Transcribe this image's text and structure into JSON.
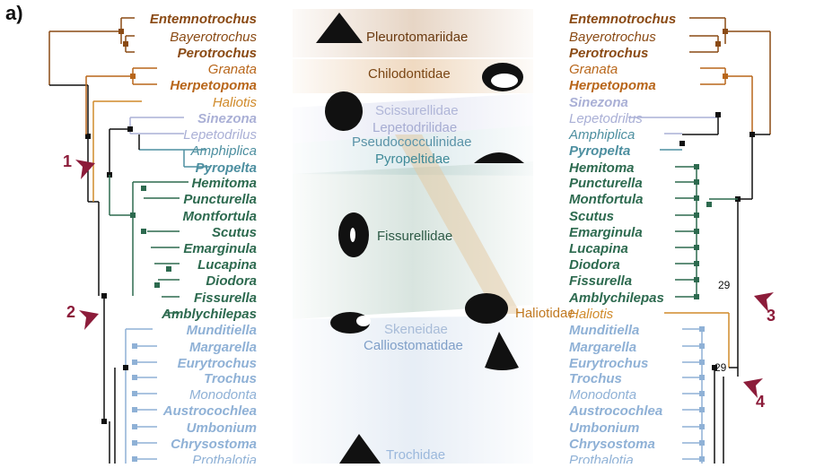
{
  "figure": {
    "panel_label": "a)",
    "colors": {
      "pleurotomariidae": "#8a4a14",
      "chilodontidae": "#b8661a",
      "haliotis": "#d08a2a",
      "lepetodrilidae": "#aab0d6",
      "pyropeltidae": "#4d8fa0",
      "fissurellidae": "#2d6a4f",
      "trochidae": "#8fb1d6",
      "backbone": "#111111",
      "arrow": "#8c1c3a"
    },
    "families": [
      {
        "key": "pleuro",
        "name": "Pleurotomariidae",
        "color": "#6a3a10"
      },
      {
        "key": "chilo",
        "name": "Chilodontidae",
        "color": "#7a4614"
      },
      {
        "key": "sciss",
        "name": "Scissurellidae",
        "color": "#b0b6d8"
      },
      {
        "key": "lepe",
        "name": "Lepetodrilidae",
        "color": "#a6acd2"
      },
      {
        "key": "pseudo",
        "name": "Pseudococculinidae",
        "color": "#5a93a8"
      },
      {
        "key": "pyro",
        "name": "Pyropeltidae",
        "color": "#3f8a98"
      },
      {
        "key": "fissu",
        "name": "Fissurellidae",
        "color": "#2d5a46"
      },
      {
        "key": "halio",
        "name": "Haliotidae",
        "color": "#c07820"
      },
      {
        "key": "skene",
        "name": "Skeneidae",
        "color": "#a8bcd8"
      },
      {
        "key": "callio",
        "name": "Calliostomatidae",
        "color": "#7f9fc8"
      },
      {
        "key": "troch",
        "name": "Trochidae",
        "color": "#9bb8dc"
      }
    ],
    "taxa_left": [
      {
        "name": "Entemnotrochus",
        "bold": true
      },
      {
        "name": "Bayerotrochus",
        "bold": false
      },
      {
        "name": "Perotrochus",
        "bold": true
      },
      {
        "name": "Granata",
        "bold": false
      },
      {
        "name": "Herpetopoma",
        "bold": true
      },
      {
        "name": "Haliotis",
        "bold": false
      },
      {
        "name": "Sinezona",
        "bold": true
      },
      {
        "name": "Lepetodrilus",
        "bold": false
      },
      {
        "name": "Amphiplica",
        "bold": false
      },
      {
        "name": "Pyropelta",
        "bold": true
      },
      {
        "name": "Hemitoma",
        "bold": true
      },
      {
        "name": "Puncturella",
        "bold": true
      },
      {
        "name": "Montfortula",
        "bold": true
      },
      {
        "name": "Scutus",
        "bold": true
      },
      {
        "name": "Emarginula",
        "bold": true
      },
      {
        "name": "Lucapina",
        "bold": true
      },
      {
        "name": "Diodora",
        "bold": true
      },
      {
        "name": "Fissurella",
        "bold": true
      },
      {
        "name": "Amblychilepas",
        "bold": true
      },
      {
        "name": "Munditiella",
        "bold": true
      },
      {
        "name": "Margarella",
        "bold": true
      },
      {
        "name": "Eurytrochus",
        "bold": true
      },
      {
        "name": "Trochus",
        "bold": true
      },
      {
        "name": "Monodonta",
        "bold": false
      },
      {
        "name": "Austrocochlea",
        "bold": true
      },
      {
        "name": "Umbonium",
        "bold": true
      },
      {
        "name": "Chrysostoma",
        "bold": true
      },
      {
        "name": "Prothalotia",
        "bold": false
      }
    ],
    "taxa_right": [
      {
        "name": "Entemnotrochus",
        "bold": true
      },
      {
        "name": "Bayerotrochus",
        "bold": false
      },
      {
        "name": "Perotrochus",
        "bold": true
      },
      {
        "name": "Granata",
        "bold": false
      },
      {
        "name": "Herpetopoma",
        "bold": true
      },
      {
        "name": "Sinezona",
        "bold": true
      },
      {
        "name": "Lepetodrilus",
        "bold": false
      },
      {
        "name": "Amphiplica",
        "bold": false
      },
      {
        "name": "Pyropelta",
        "bold": true
      },
      {
        "name": "Hemitoma",
        "bold": true
      },
      {
        "name": "Puncturella",
        "bold": true
      },
      {
        "name": "Montfortula",
        "bold": true
      },
      {
        "name": "Scutus",
        "bold": true
      },
      {
        "name": "Emarginula",
        "bold": true
      },
      {
        "name": "Lucapina",
        "bold": true
      },
      {
        "name": "Diodora",
        "bold": true
      },
      {
        "name": "Fissurella",
        "bold": true
      },
      {
        "name": "Amblychilepas",
        "bold": true
      },
      {
        "name": "Haliotis",
        "bold": false
      },
      {
        "name": "Munditiella",
        "bold": true
      },
      {
        "name": "Margarella",
        "bold": true
      },
      {
        "name": "Eurytrochus",
        "bold": true
      },
      {
        "name": "Trochus",
        "bold": true
      },
      {
        "name": "Monodonta",
        "bold": false
      },
      {
        "name": "Austrocochlea",
        "bold": true
      },
      {
        "name": "Umbonium",
        "bold": true
      },
      {
        "name": "Chrysostoma",
        "bold": true
      },
      {
        "name": "Prothalotia",
        "bold": false
      }
    ],
    "arrows": [
      {
        "label": "1"
      },
      {
        "label": "2"
      },
      {
        "label": "3"
      },
      {
        "label": "4"
      }
    ],
    "support_values": [
      "29",
      "29"
    ]
  }
}
